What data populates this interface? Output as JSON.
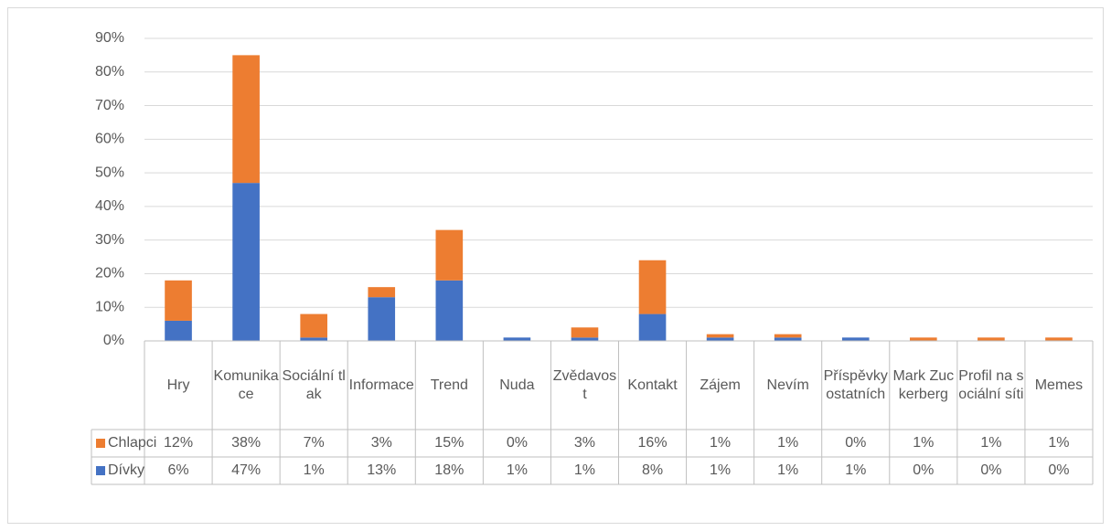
{
  "chart_data": {
    "type": "stacked_bar",
    "categories": [
      "Hry",
      "Komunikace",
      "Sociální tlak",
      "Informace",
      "Trend",
      "Nuda",
      "Zvědavost",
      "Kontakt",
      "Zájem",
      "Nevím",
      "Příspěvky ostatních",
      "Mark Zuckerberg",
      "Profil na sociální síti",
      "Memes"
    ],
    "series": [
      {
        "name": "Chlapci",
        "color": "#ed7d31",
        "values": [
          12,
          38,
          7,
          3,
          15,
          0,
          3,
          16,
          1,
          1,
          0,
          1,
          1,
          1
        ],
        "value_labels": [
          "12%",
          "38%",
          "7%",
          "3%",
          "15%",
          "0%",
          "3%",
          "16%",
          "1%",
          "1%",
          "0%",
          "1%",
          "1%",
          "1%"
        ]
      },
      {
        "name": "Dívky",
        "color": "#4472c4",
        "values": [
          6,
          47,
          1,
          13,
          18,
          1,
          1,
          8,
          1,
          1,
          1,
          0,
          0,
          0
        ],
        "value_labels": [
          "6%",
          "47%",
          "1%",
          "13%",
          "18%",
          "1%",
          "1%",
          "8%",
          "1%",
          "1%",
          "1%",
          "0%",
          "0%",
          "0%"
        ]
      }
    ],
    "ylim": [
      0,
      90
    ],
    "yticks": [
      {
        "value": 0,
        "label": "0%"
      },
      {
        "value": 10,
        "label": "10%"
      },
      {
        "value": 20,
        "label": "20%"
      },
      {
        "value": 30,
        "label": "30%"
      },
      {
        "value": 40,
        "label": "40%"
      },
      {
        "value": 50,
        "label": "50%"
      },
      {
        "value": 60,
        "label": "60%"
      },
      {
        "value": 70,
        "label": "70%"
      },
      {
        "value": 80,
        "label": "80%"
      },
      {
        "value": 90,
        "label": "90%"
      }
    ],
    "grid": true,
    "data_table": true
  }
}
